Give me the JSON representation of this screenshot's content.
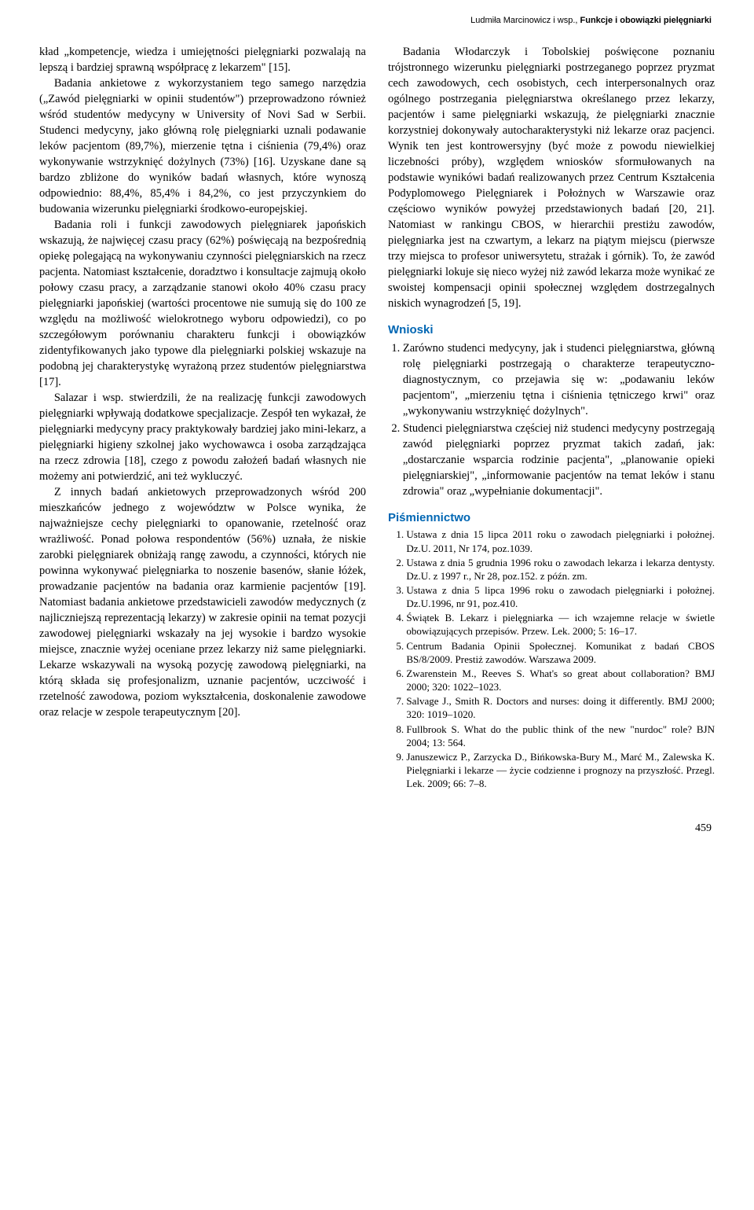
{
  "header": {
    "authors": "Ludmiła Marcinowicz i wsp., ",
    "title": "Funkcje i obowiązki pielęgniarki"
  },
  "left_column": {
    "p1": "kład „kompetencje, wiedza i umiejętności pielęgniarki pozwalają na lepszą i bardziej sprawną współpracę z lekarzem\" [15].",
    "p2": "Badania ankietowe z wykorzystaniem tego samego narzędzia („Zawód pielęgniarki w opinii studentów\") przeprowadzono również wśród studentów medycyny w University of Novi Sad w Serbii. Studenci medycyny, jako główną rolę pielęgniarki uznali podawanie leków pacjentom (89,7%), mierzenie tętna i ciśnienia (79,4%) oraz wykonywanie wstrzyknięć dożylnych (73%) [16]. Uzyskane dane są bardzo zbliżone do wyników badań własnych, które wynoszą odpowiednio: 88,4%, 85,4% i 84,2%, co jest przyczynkiem do budowania wizerunku pielęgniarki środkowo-europejskiej.",
    "p3": "Badania roli i funkcji zawodowych pielęgniarek japońskich wskazują, że najwięcej czasu pracy (62%) poświęcają na bezpośrednią opiekę polegającą na wykonywaniu czynności pielęgniarskich na rzecz pacjenta. Natomiast kształcenie, doradztwo i konsultacje zajmują około połowy czasu pracy, a zarządzanie stanowi około 40% czasu pracy pielęgniarki japońskiej (wartości procentowe nie sumują się do 100 ze względu na możliwość wielokrotnego wyboru odpowiedzi), co po szczegółowym porównaniu charakteru funkcji i obowiązków zidentyfikowanych jako typowe dla pielęgniarki polskiej wskazuje na podobną jej charakterystykę wyrażoną przez studentów pielęgniarstwa [17].",
    "p4": "Salazar i wsp. stwierdzili, że na realizację funkcji zawodowych pielęgniarki wpływają dodatkowe specjalizacje. Zespół ten wykazał, że pielęgniarki medycyny pracy praktykowały bardziej jako mini-lekarz, a pielęgniarki higieny szkolnej jako wychowawca i osoba zarządzająca na rzecz zdrowia [18], czego z powodu założeń badań własnych nie możemy ani potwierdzić, ani też wykluczyć.",
    "p5": "Z innych badań ankietowych przeprowadzonych wśród 200 mieszkańców jednego z województw w Polsce wynika, że najważniejsze cechy pielęgniarki to opanowanie, rzetelność oraz wrażliwość. Ponad połowa respondentów (56%) uznała, że niskie zarobki pielęgniarek obniżają rangę zawodu, a czynności, których nie powinna wykonywać pielęgniarka to noszenie basenów, słanie łóżek, prowadzanie pacjentów na badania oraz karmienie pacjentów [19]. Natomiast badania ankietowe przedstawicieli zawodów medycznych (z najliczniejszą reprezentacją lekarzy) w zakresie opinii na temat pozycji zawodowej pielęgniarki wskazały na jej wysokie i bardzo wysokie miejsce, znacznie wyżej oceniane przez lekarzy niż same pielęgniarki. Lekarze wskazywali na wysoką pozycję zawodową pielęgniarki, na którą składa się profesjonalizm, uznanie pacjentów, uczciwość i rzetelność zawodowa, poziom wykształcenia, doskonalenie zawodowe oraz relacje w zespole terapeutycznym [20]."
  },
  "right_column": {
    "p1": "Badania Włodarczyk i Tobolskiej poświęcone poznaniu trójstronnego wizerunku pielęgniarki postrzeganego poprzez pryzmat cech zawodowych, cech osobistych, cech interpersonalnych oraz ogólnego postrzegania pielęgniarstwa określanego przez lekarzy, pacjentów i same pielęgniarki wskazują, że pielęgniarki znacznie korzystniej dokonywały autocharakterystyki niż lekarze oraz pacjenci. Wynik ten jest kontrowersyjny (być może z powodu niewielkiej liczebności próby), względem wniosków sformułowanych na podstawie wynikówi badań realizowanych przez Centrum Kształcenia Podyplomowego Pielęgniarek i Położnych w Warszawie oraz częściowo wyników powyżej przedstawionych badań [20, 21]. Natomiast w rankingu CBOS, w hierarchii prestiżu zawodów, pielęgniarka jest na czwartym, a lekarz na piątym miejscu (pierwsze trzy miejsca to profesor uniwersytetu, strażak i górnik). To, że zawód pielęgniarki lokuje się nieco wyżej niż zawód lekarza może wynikać ze swoistej kompensacji opinii społecznej względem dostrzegalnych niskich wynagrodzeń [5, 19].",
    "wnioski_head": "Wnioski",
    "wnioski": [
      "Zarówno studenci medycyny, jak i studenci pielęgniarstwa, główną rolę pielęgniarki postrzegają o charakterze terapeutyczno-diagnostycznym, co przejawia się w: „podawaniu leków pacjentom\", „mierzeniu tętna i ciśnienia tętniczego krwi\" oraz „wykonywaniu wstrzyknięć dożylnych\".",
      "Studenci pielęgniarstwa częściej niż studenci medycyny postrzegają zawód pielęgniarki poprzez pryzmat takich zadań, jak: „dostarczanie wsparcia rodzinie pacjenta\", „planowanie opieki pielęgniarskiej\", „informowanie pacjentów na temat leków i stanu zdrowia\" oraz „wypełnianie dokumentacji\"."
    ],
    "pism_head": "Piśmiennictwo",
    "refs": [
      "Ustawa z dnia 15 lipca 2011 roku o zawodach pielęgniarki i położnej. Dz.U. 2011, Nr 174, poz.1039.",
      "Ustawa z dnia 5 grudnia 1996 roku o zawodach lekarza i lekarza dentysty. Dz.U. z 1997 r., Nr 28, poz.152. z późn. zm.",
      "Ustawa z dnia 5 lipca 1996 roku o zawodach pielęgniarki i położnej. Dz.U.1996, nr 91, poz.410.",
      "Świątek B. Lekarz i pielęgniarka — ich wzajemne relacje w świetle obowiązujących przepisów. Przew. Lek. 2000; 5: 16–17.",
      "Centrum Badania Opinii Społecznej. Komunikat z badań CBOS BS/8/2009. Prestiż zawodów. Warszawa 2009.",
      "Zwarenstein M., Reeves S. What's so great about collaboration? BMJ 2000; 320: 1022–1023.",
      "Salvage J., Smith R. Doctors and nurses: doing it differently. BMJ 2000; 320: 1019–1020.",
      "Fullbrook S. What do the public think of the new \"nurdoc\" role? BJN 2004; 13: 564.",
      "Januszewicz P., Zarzycka D., Bińkowska-Bury M., Marć M., Zalewska K. Pielęgniarki i lekarze — życie codzienne i prognozy na przyszłość. Przegl. Lek. 2009; 66: 7–8."
    ]
  },
  "page_number": "459",
  "colors": {
    "section_head": "#0066b3",
    "text": "#000000",
    "background": "#ffffff"
  }
}
